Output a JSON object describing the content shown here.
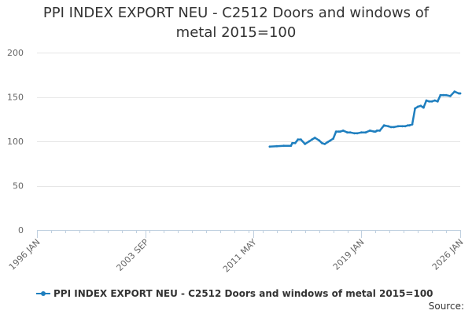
{
  "chart_data": {
    "type": "line",
    "title_line1": "PPI INDEX EXPORT NEU - C2512 Doors and windows of",
    "title_line2": "metal 2015=100",
    "xlabel": "",
    "ylabel": "",
    "ylim": [
      0,
      200
    ],
    "y_ticks": [
      0,
      50,
      100,
      150,
      200
    ],
    "x_range": [
      1996.0,
      2026.0
    ],
    "x_ticks": [
      {
        "label": "1996 JAN",
        "value": 1996.0
      },
      {
        "label": "2003 SEP",
        "value": 2003.67
      },
      {
        "label": "2011 MAY",
        "value": 2011.33
      },
      {
        "label": "2019 JAN",
        "value": 2019.0
      },
      {
        "label": "2026 JAN",
        "value": 2026.0
      }
    ],
    "grid": "horizontal",
    "legend_position": "bottom",
    "series": [
      {
        "name": "PPI INDEX EXPORT NEU - C2512 Doors and windows of metal 2015=100",
        "color": "#1f7fbf",
        "x": [
          2012.5,
          2013.0,
          2013.5,
          2014.0,
          2014.1,
          2014.3,
          2014.5,
          2014.7,
          2015.0,
          2015.3,
          2015.5,
          2015.7,
          2016.0,
          2016.2,
          2016.4,
          2016.6,
          2016.8,
          2017.0,
          2017.2,
          2017.4,
          2017.5,
          2017.7,
          2018.0,
          2018.2,
          2018.5,
          2018.7,
          2019.0,
          2019.3,
          2019.6,
          2019.9,
          2020.0,
          2020.1,
          2020.3,
          2020.6,
          2020.9,
          2021.1,
          2021.3,
          2021.6,
          2021.9,
          2022.1,
          2022.3,
          2022.4,
          2022.6,
          2022.8,
          2023.0,
          2023.2,
          2023.4,
          2023.6,
          2023.8,
          2024.0,
          2024.2,
          2024.4,
          2024.6,
          2024.8,
          2025.0,
          2025.3,
          2025.6,
          2025.9,
          2026.0
        ],
        "values": [
          94,
          94.5,
          95,
          95,
          98,
          98,
          102,
          102,
          97,
          100,
          102,
          104,
          101,
          98,
          97,
          99,
          101,
          103,
          111,
          111,
          111,
          112,
          110,
          110,
          109,
          109,
          110,
          110,
          112,
          111,
          111,
          112,
          112,
          118,
          117,
          116,
          116,
          117,
          117,
          117,
          118,
          118,
          119,
          137,
          139,
          140,
          138,
          146,
          145,
          145,
          146,
          145,
          152,
          152,
          152,
          151,
          156,
          154,
          154
        ]
      }
    ]
  },
  "legend": {
    "label": "PPI INDEX EXPORT NEU - C2512 Doors and windows of metal 2015=100"
  },
  "source": {
    "label": "Source:"
  }
}
